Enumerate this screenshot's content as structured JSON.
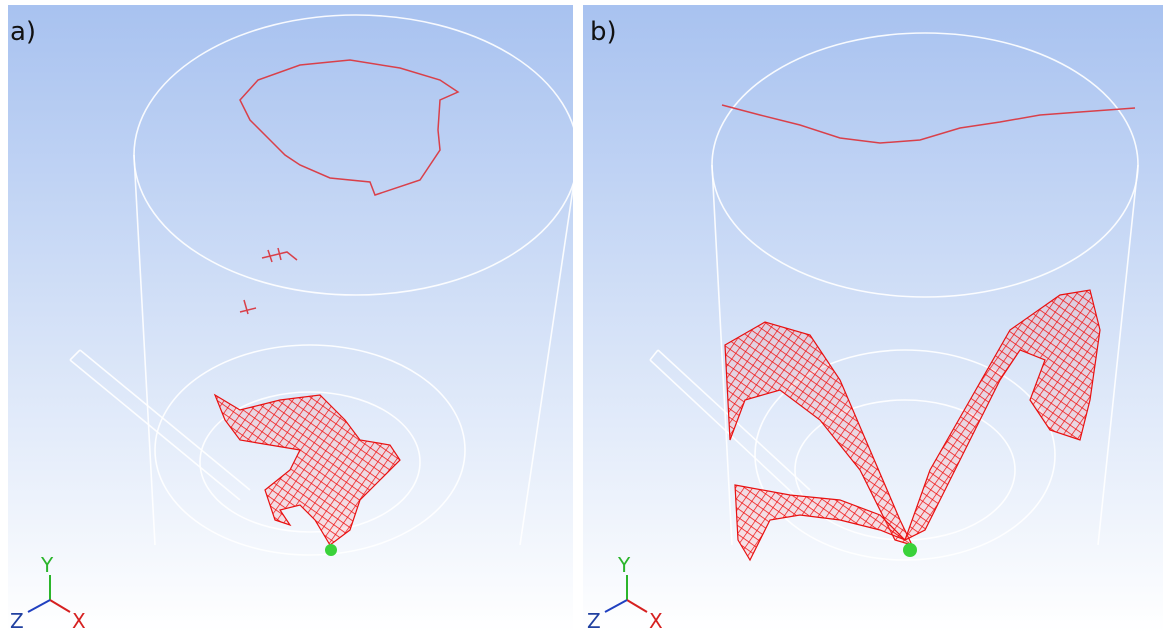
{
  "panels": [
    {
      "label": "a)",
      "axes": {
        "y": "Y",
        "z": "Z",
        "x": "X"
      }
    },
    {
      "label": "b)",
      "axes": {
        "y": "Y",
        "z": "Z",
        "x": "X"
      }
    }
  ]
}
